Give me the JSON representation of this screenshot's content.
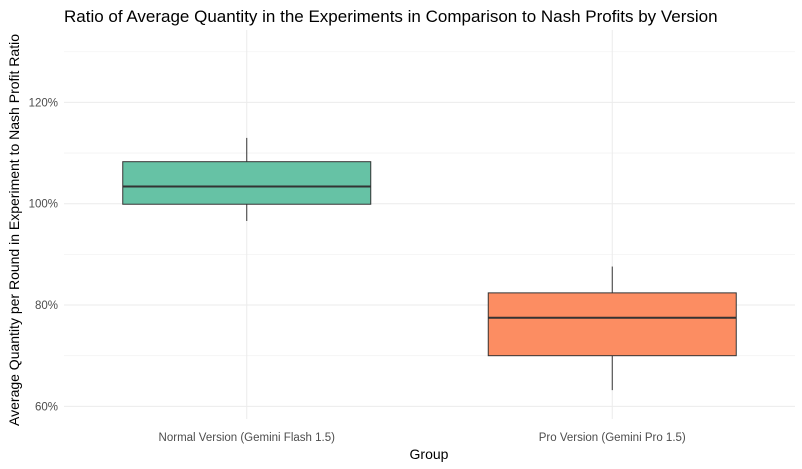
{
  "chart_data": {
    "type": "boxplot",
    "title": "Ratio of Average Quantity in the Experiments in Comparison to Nash Profits by Version",
    "xlabel": "Group",
    "ylabel": "Average Quantity per Round in Experiment to Nash Profit Ratio",
    "ylim": [
      57.5,
      134.3
    ],
    "yticks": [
      60,
      80,
      100,
      120
    ],
    "ytick_labels": [
      "60%",
      "80%",
      "100%",
      "120%"
    ],
    "grid": true,
    "legend": "none",
    "categories": [
      "Normal Version (Gemini Flash 1.5)",
      "Pro Version (Gemini Pro 1.5)"
    ],
    "boxes": [
      {
        "category": "Normal Version (Gemini Flash 1.5)",
        "min": 96.6,
        "q1": 99.9,
        "median": 103.4,
        "q3": 108.3,
        "max": 113.0,
        "color": "#66c2a5"
      },
      {
        "category": "Pro Version (Gemini Pro 1.5)",
        "min": 63.2,
        "q1": 70.0,
        "median": 77.5,
        "q3": 82.4,
        "max": 87.6,
        "color": "#fc8d62"
      }
    ]
  }
}
